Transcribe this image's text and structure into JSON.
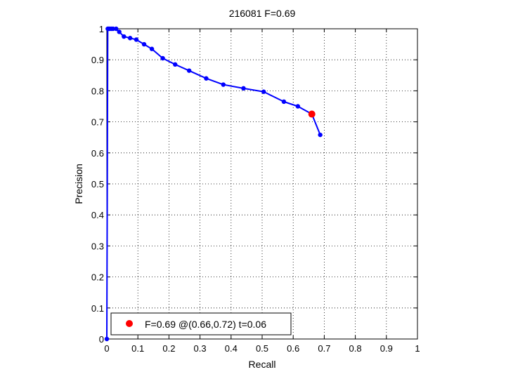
{
  "chart_data": {
    "type": "line",
    "title": "216081 F=0.69",
    "xlabel": "Recall",
    "ylabel": "Precision",
    "xlim": [
      0,
      1
    ],
    "ylim": [
      0,
      1
    ],
    "grid": true,
    "x_ticks": [
      "0",
      "0.1",
      "0.2",
      "0.3",
      "0.4",
      "0.5",
      "0.6",
      "0.7",
      "0.8",
      "0.9",
      "1"
    ],
    "y_ticks": [
      "0",
      "0.1",
      "0.2",
      "0.3",
      "0.4",
      "0.5",
      "0.6",
      "0.7",
      "0.8",
      "0.9",
      "1"
    ],
    "series": [
      {
        "color": "#0000ff",
        "x": [
          0.0,
          0.003,
          0.006,
          0.01,
          0.015,
          0.02,
          0.03,
          0.04,
          0.055,
          0.075,
          0.095,
          0.12,
          0.145,
          0.18,
          0.22,
          0.265,
          0.32,
          0.375,
          0.44,
          0.505,
          0.57,
          0.615,
          0.66,
          0.687
        ],
        "y": [
          0.0,
          1.0,
          1.0,
          1.0,
          1.0,
          1.0,
          1.0,
          0.99,
          0.975,
          0.97,
          0.965,
          0.95,
          0.935,
          0.905,
          0.885,
          0.865,
          0.84,
          0.82,
          0.808,
          0.797,
          0.765,
          0.75,
          0.725,
          0.658
        ]
      }
    ],
    "best_point": {
      "x": 0.66,
      "y": 0.725,
      "color": "#ff0000"
    },
    "legend": {
      "position": "bottom-left",
      "entries": [
        "F=0.69 @(0.66,0.72) t=0.06"
      ]
    }
  }
}
